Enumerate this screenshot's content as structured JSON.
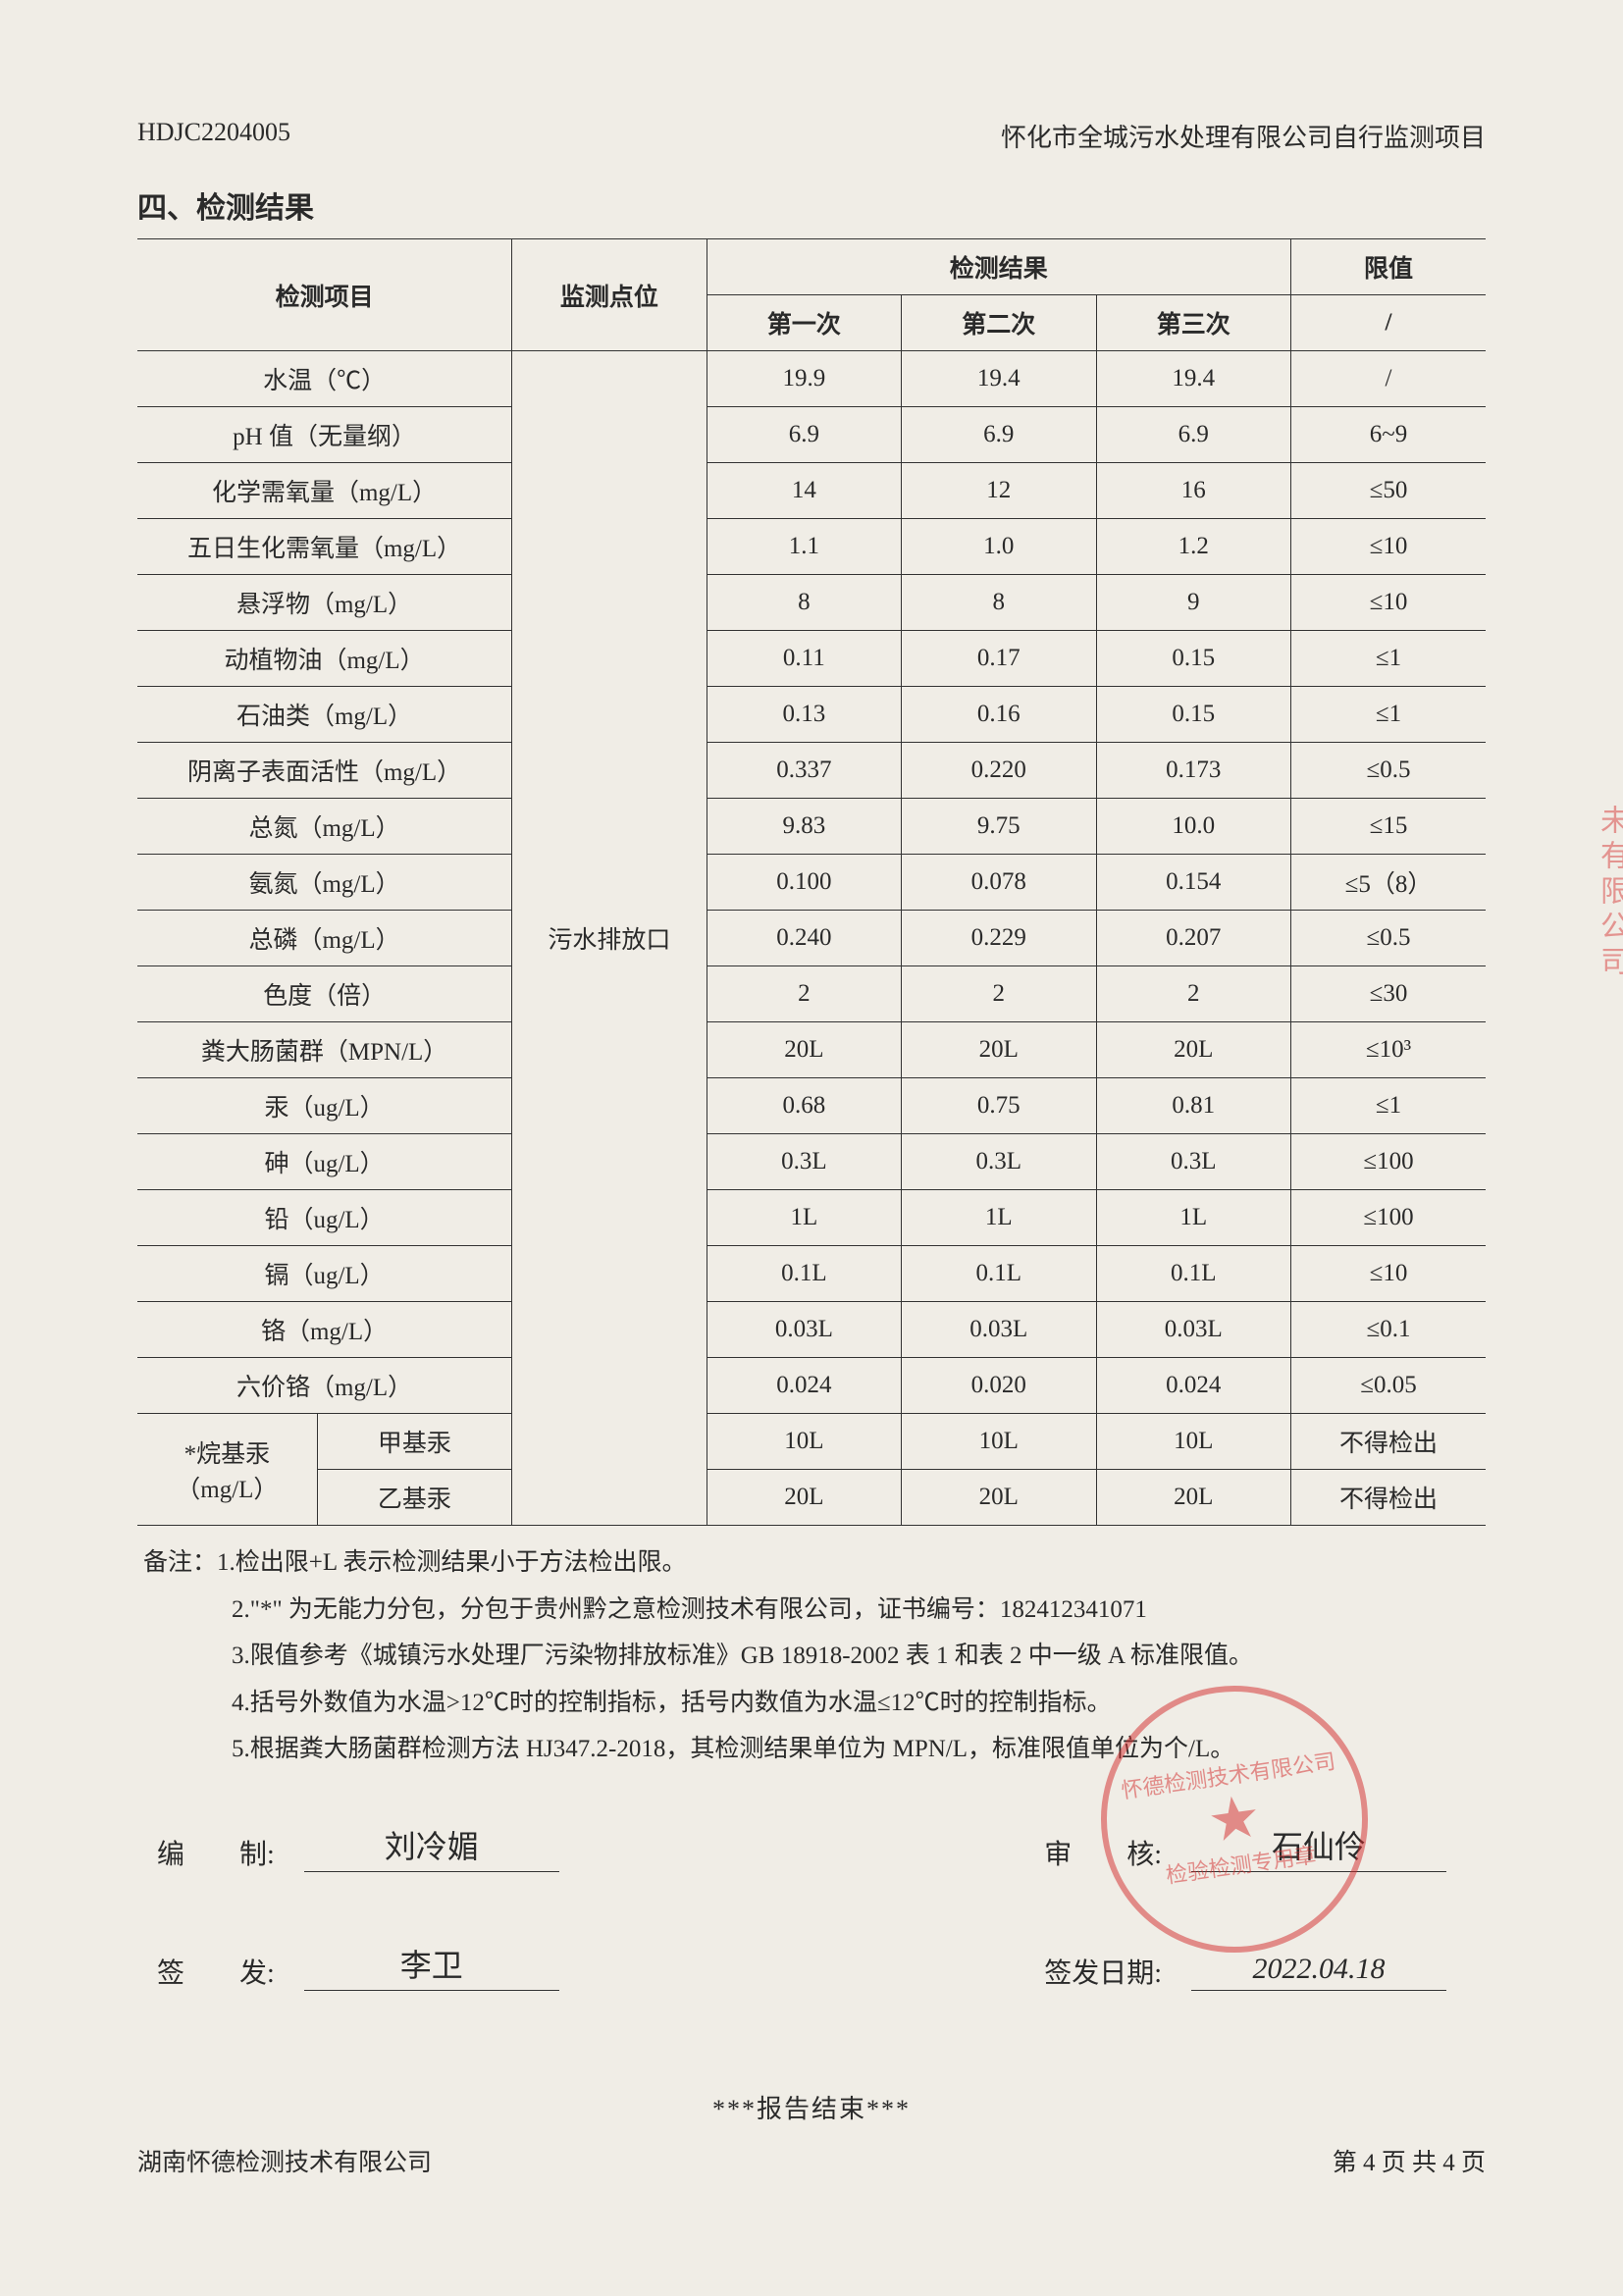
{
  "header": {
    "doc_no": "HDJC2204005",
    "title_right": "怀化市全城污水处理有限公司自行监测项目"
  },
  "section_title": "四、检测结果",
  "table": {
    "headers": {
      "item": "检测项目",
      "point": "监测点位",
      "results_group": "检测结果",
      "r1": "第一次",
      "r2": "第二次",
      "r3": "第三次",
      "limit_group": "限值",
      "limit_sub": "/"
    },
    "monitoring_point": "污水排放口",
    "rows": [
      {
        "item": "水温（℃）",
        "v1": "19.9",
        "v2": "19.4",
        "v3": "19.4",
        "limit": "/"
      },
      {
        "item": "pH 值（无量纲）",
        "v1": "6.9",
        "v2": "6.9",
        "v3": "6.9",
        "limit": "6~9"
      },
      {
        "item": "化学需氧量（mg/L）",
        "v1": "14",
        "v2": "12",
        "v3": "16",
        "limit": "≤50"
      },
      {
        "item": "五日生化需氧量（mg/L）",
        "v1": "1.1",
        "v2": "1.0",
        "v3": "1.2",
        "limit": "≤10"
      },
      {
        "item": "悬浮物（mg/L）",
        "v1": "8",
        "v2": "8",
        "v3": "9",
        "limit": "≤10"
      },
      {
        "item": "动植物油（mg/L）",
        "v1": "0.11",
        "v2": "0.17",
        "v3": "0.15",
        "limit": "≤1"
      },
      {
        "item": "石油类（mg/L）",
        "v1": "0.13",
        "v2": "0.16",
        "v3": "0.15",
        "limit": "≤1"
      },
      {
        "item": "阴离子表面活性（mg/L）",
        "v1": "0.337",
        "v2": "0.220",
        "v3": "0.173",
        "limit": "≤0.5"
      },
      {
        "item": "总氮（mg/L）",
        "v1": "9.83",
        "v2": "9.75",
        "v3": "10.0",
        "limit": "≤15"
      },
      {
        "item": "氨氮（mg/L）",
        "v1": "0.100",
        "v2": "0.078",
        "v3": "0.154",
        "limit": "≤5（8）"
      },
      {
        "item": "总磷（mg/L）",
        "v1": "0.240",
        "v2": "0.229",
        "v3": "0.207",
        "limit": "≤0.5"
      },
      {
        "item": "色度（倍）",
        "v1": "2",
        "v2": "2",
        "v3": "2",
        "limit": "≤30"
      },
      {
        "item": "粪大肠菌群（MPN/L）",
        "v1": "20L",
        "v2": "20L",
        "v3": "20L",
        "limit": "≤10³"
      },
      {
        "item": "汞（ug/L）",
        "v1": "0.68",
        "v2": "0.75",
        "v3": "0.81",
        "limit": "≤1"
      },
      {
        "item": "砷（ug/L）",
        "v1": "0.3L",
        "v2": "0.3L",
        "v3": "0.3L",
        "limit": "≤100"
      },
      {
        "item": "铅（ug/L）",
        "v1": "1L",
        "v2": "1L",
        "v3": "1L",
        "limit": "≤100"
      },
      {
        "item": "镉（ug/L）",
        "v1": "0.1L",
        "v2": "0.1L",
        "v3": "0.1L",
        "limit": "≤10"
      },
      {
        "item": "铬（mg/L）",
        "v1": "0.03L",
        "v2": "0.03L",
        "v3": "0.03L",
        "limit": "≤0.1"
      },
      {
        "item": "六价铬（mg/L）",
        "v1": "0.024",
        "v2": "0.020",
        "v3": "0.024",
        "limit": "≤0.05"
      }
    ],
    "alkyl_group": {
      "group_label_top": "*烷基汞",
      "group_label_bot": "（mg/L）",
      "sub1": "甲基汞",
      "sub2": "乙基汞",
      "r1": {
        "v1": "10L",
        "v2": "10L",
        "v3": "10L",
        "limit": "不得检出"
      },
      "r2": {
        "v1": "20L",
        "v2": "20L",
        "v3": "20L",
        "limit": "不得检出"
      }
    }
  },
  "notes": {
    "lead": "备注：",
    "l1": "1.检出限+L 表示检测结果小于方法检出限。",
    "l2": "2.\"*\" 为无能力分包，分包于贵州黔之意检测技术有限公司，证书编号：182412341071",
    "l3": "3.限值参考《城镇污水处理厂污染物排放标准》GB 18918-2002 表 1 和表 2 中一级 A 标准限值。",
    "l4": "4.括号外数值为水温>12℃时的控制指标，括号内数值为水温≤12℃时的控制指标。",
    "l5": "5.根据粪大肠菌群检测方法 HJ347.2-2018，其检测结果单位为 MPN/L，标准限值单位为个/L。"
  },
  "signatures": {
    "compiler_label": "编　　制:",
    "reviewer_label": "审　　核:",
    "issuer_label": "签　　发:",
    "issue_date_label": "签发日期:",
    "compiler_value": "刘冷媚",
    "reviewer_value": "石仙伶",
    "issuer_value": "李卫",
    "issue_date_value": "2022.04.18"
  },
  "report_end": "***报告结束***",
  "footer": {
    "company": "湖南怀德检测技术有限公司",
    "page": "第 4 页 共 4 页"
  },
  "stamp": {
    "ring_text_top": "怀德检测技术有限公司",
    "center_text": "检验检测专用章"
  },
  "edge_stamp": "未有限公司"
}
